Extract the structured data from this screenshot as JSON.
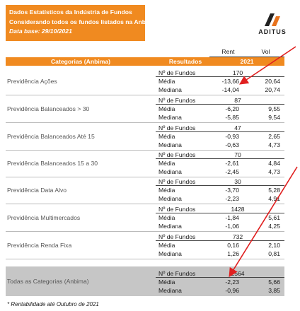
{
  "banner": {
    "line1": "Dados Estatísticos da Indústria de Fundos",
    "line2": "Considerando todos os fundos listados na Anbima",
    "line3": "Data base: 29/10/2021"
  },
  "logo": {
    "brand": "ADITUS"
  },
  "table": {
    "col_rent": "Rent",
    "col_vol": "Vol",
    "col_category": "Categorias (Anbima)",
    "col_results": "Resultados",
    "col_year": "2021",
    "stat_labels": [
      "Nº de Fundos",
      "Média",
      "Mediana"
    ],
    "rows": [
      {
        "category": "Previdência Ações",
        "funds": "170",
        "media_rent": "-13,66",
        "media_vol": "20,64",
        "mediana_rent": "-14,04",
        "mediana_vol": "20,74"
      },
      {
        "category": "Previdência Balanceados > 30",
        "funds": "87",
        "media_rent": "-6,20",
        "media_vol": "9,55",
        "mediana_rent": "-5,85",
        "mediana_vol": "9,54"
      },
      {
        "category": "Previdência Balanceados Até 15",
        "funds": "47",
        "media_rent": "-0,93",
        "media_vol": "2,65",
        "mediana_rent": "-0,63",
        "mediana_vol": "4,73"
      },
      {
        "category": "Previdência Balanceados 15 a 30",
        "funds": "70",
        "media_rent": "-2,61",
        "media_vol": "4,84",
        "mediana_rent": "-2,45",
        "mediana_vol": "4,73"
      },
      {
        "category": "Previdência Data Alvo",
        "funds": "30",
        "media_rent": "-3,70",
        "media_vol": "5,28",
        "mediana_rent": "-2,23",
        "mediana_vol": "4,91"
      },
      {
        "category": "Previdência Multimercados",
        "funds": "1428",
        "media_rent": "-1,84",
        "media_vol": "5,61",
        "mediana_rent": "-1,06",
        "mediana_vol": "4,25"
      },
      {
        "category": "Previdência Renda Fixa",
        "funds": "732",
        "media_rent": "0,16",
        "media_vol": "2,10",
        "mediana_rent": "1,26",
        "mediana_vol": "0,81"
      },
      {
        "category": "Todas as Categorias (Anbima)",
        "funds": "2564",
        "media_rent": "-2,23",
        "media_vol": "5,66",
        "mediana_rent": "-0,96",
        "mediana_vol": "3,85"
      }
    ]
  },
  "footnote": "* Rentabilidade até Outubro de 2021",
  "colors": {
    "accent": "#f08a20",
    "total_bg": "#c6c6c6",
    "arrow": "#e02020"
  }
}
